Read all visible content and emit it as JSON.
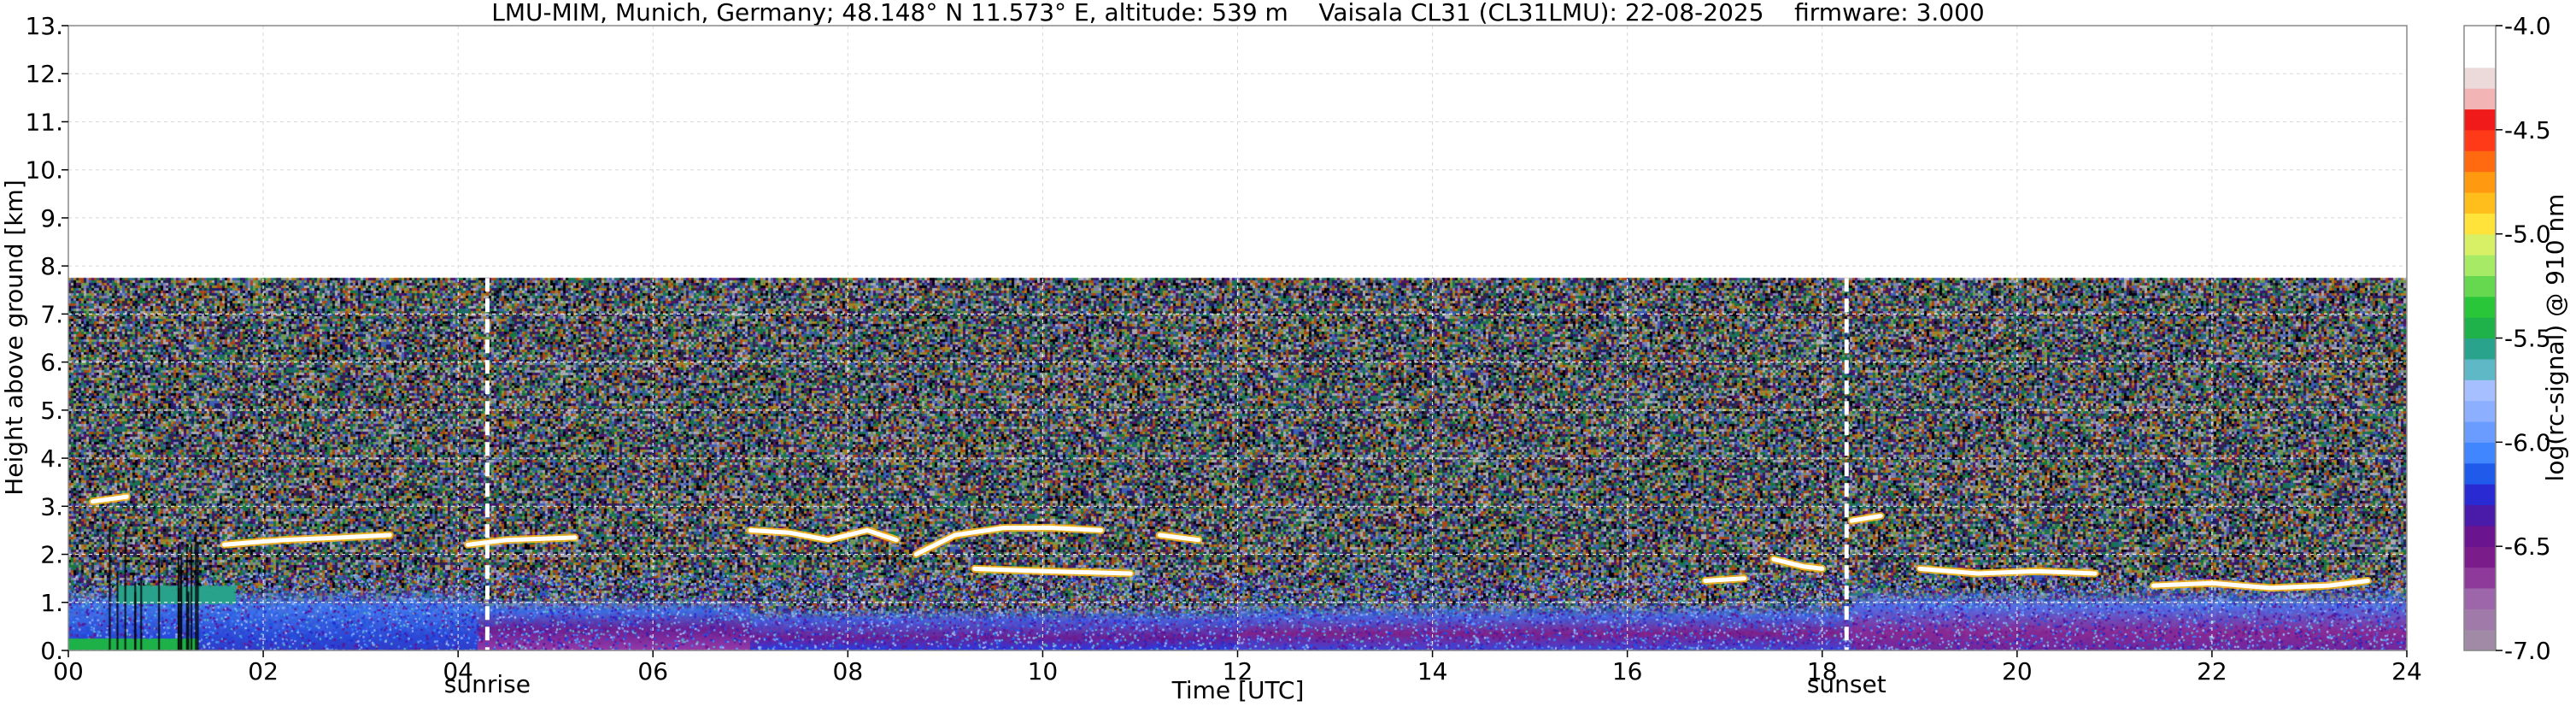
{
  "chart_data": {
    "type": "heatmap",
    "title": "LMU-MIM, Munich, Germany; 48.148° N 11.573° E, altitude: 539 m    Vaisala CL31 (CL31LMU): 22-08-2025    firmware: 3.000",
    "xlabel": "Time [UTC]",
    "ylabel": "Height above ground [km]",
    "xlim": [
      0,
      24
    ],
    "ylim": [
      0,
      13
    ],
    "x_ticks": [
      {
        "value": 0,
        "label": "00"
      },
      {
        "value": 2,
        "label": "02"
      },
      {
        "value": 4,
        "label": "04"
      },
      {
        "value": 6,
        "label": "06"
      },
      {
        "value": 8,
        "label": "08"
      },
      {
        "value": 10,
        "label": "10"
      },
      {
        "value": 12,
        "label": "12"
      },
      {
        "value": 14,
        "label": "14"
      },
      {
        "value": 16,
        "label": "16"
      },
      {
        "value": 18,
        "label": "18"
      },
      {
        "value": 20,
        "label": "20"
      },
      {
        "value": 22,
        "label": "22"
      },
      {
        "value": 24,
        "label": "24"
      }
    ],
    "y_ticks": [
      {
        "value": 0,
        "label": "0."
      },
      {
        "value": 1,
        "label": "1."
      },
      {
        "value": 2,
        "label": "2."
      },
      {
        "value": 3,
        "label": "3."
      },
      {
        "value": 4,
        "label": "4."
      },
      {
        "value": 5,
        "label": "5."
      },
      {
        "value": 6,
        "label": "6."
      },
      {
        "value": 7,
        "label": "7."
      },
      {
        "value": 8,
        "label": "8."
      },
      {
        "value": 9,
        "label": "9."
      },
      {
        "value": 10,
        "label": "10."
      },
      {
        "value": 11,
        "label": "11."
      },
      {
        "value": 12,
        "label": "12."
      },
      {
        "value": 13,
        "label": "13."
      }
    ],
    "grid": true,
    "signal_top_km": 7.75,
    "annotations": [
      {
        "label": "sunrise",
        "x": 4.3
      },
      {
        "label": "sunset",
        "x": 18.25
      }
    ],
    "cloud_layers": [
      {
        "points": [
          [
            0.25,
            3.1
          ],
          [
            0.6,
            3.2
          ]
        ]
      },
      {
        "points": [
          [
            1.6,
            2.2
          ],
          [
            2.2,
            2.3
          ],
          [
            2.8,
            2.35
          ],
          [
            3.3,
            2.4
          ]
        ]
      },
      {
        "points": [
          [
            4.1,
            2.2
          ],
          [
            4.5,
            2.3
          ],
          [
            5.2,
            2.35
          ]
        ]
      },
      {
        "points": [
          [
            7.0,
            2.5
          ],
          [
            7.4,
            2.45
          ],
          [
            7.8,
            2.3
          ],
          [
            8.2,
            2.5
          ],
          [
            8.5,
            2.3
          ]
        ]
      },
      {
        "points": [
          [
            8.7,
            2.0
          ],
          [
            9.1,
            2.4
          ],
          [
            9.6,
            2.55
          ],
          [
            10.1,
            2.55
          ],
          [
            10.6,
            2.5
          ]
        ]
      },
      {
        "points": [
          [
            9.3,
            1.7
          ],
          [
            10.0,
            1.65
          ],
          [
            10.9,
            1.6
          ]
        ]
      },
      {
        "points": [
          [
            11.2,
            2.4
          ],
          [
            11.6,
            2.3
          ]
        ]
      },
      {
        "points": [
          [
            16.8,
            1.45
          ],
          [
            17.2,
            1.5
          ]
        ]
      },
      {
        "points": [
          [
            17.5,
            1.9
          ],
          [
            17.8,
            1.75
          ],
          [
            18.0,
            1.7
          ]
        ]
      },
      {
        "points": [
          [
            18.3,
            2.7
          ],
          [
            18.6,
            2.8
          ]
        ]
      },
      {
        "points": [
          [
            19.0,
            1.7
          ],
          [
            19.6,
            1.6
          ],
          [
            20.2,
            1.65
          ],
          [
            20.8,
            1.6
          ]
        ]
      },
      {
        "points": [
          [
            21.4,
            1.35
          ],
          [
            22.0,
            1.4
          ],
          [
            22.6,
            1.3
          ],
          [
            23.2,
            1.35
          ],
          [
            23.6,
            1.45
          ]
        ]
      }
    ],
    "colorbar": {
      "label": "log(rc-signal) @ 910 nm",
      "min": -7.0,
      "max": -4.0,
      "ticks": [
        {
          "value": -4.0,
          "label": "-4.0"
        },
        {
          "value": -4.5,
          "label": "-4.5"
        },
        {
          "value": -5.0,
          "label": "-5.0"
        },
        {
          "value": -5.5,
          "label": "-5.5"
        },
        {
          "value": -6.0,
          "label": "-6.0"
        },
        {
          "value": -6.5,
          "label": "-6.5"
        },
        {
          "value": -7.0,
          "label": "-7.0"
        }
      ],
      "colors": [
        "#a18aa6",
        "#a07aa8",
        "#9e66aa",
        "#8e3a9a",
        "#7a1c8a",
        "#6a1490",
        "#4a1aa8",
        "#2a2ad2",
        "#1f5aea",
        "#3f86ff",
        "#6a9cff",
        "#8cb0ff",
        "#a6c0ff",
        "#5fb8c6",
        "#2aa38c",
        "#1fb24a",
        "#29c63a",
        "#66d850",
        "#a6ea66",
        "#d8f066",
        "#ffe23a",
        "#ffbe1c",
        "#ff9a10",
        "#ff6a10",
        "#ff3a18",
        "#f01a1a",
        "#f2b4b4",
        "#ecdada",
        "#ffffff",
        "#ffffff"
      ]
    }
  }
}
